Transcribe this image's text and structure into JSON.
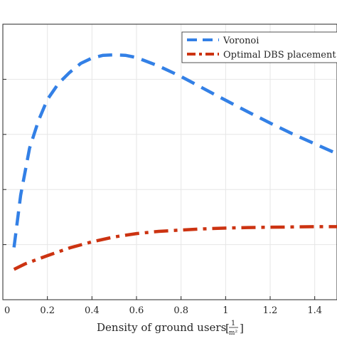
{
  "chart_data": {
    "type": "line",
    "title": "",
    "xlabel": "Density of ground users",
    "xlabel_unit_numerator": "1",
    "xlabel_unit_denominator": "m²",
    "ylabel": "",
    "xlim": [
      0,
      1.5
    ],
    "ylim": [
      0,
      1
    ],
    "x_ticks": [
      "0",
      "0.2",
      "0.4",
      "0.6",
      "0.8",
      "1",
      "1.2",
      "1.4"
    ],
    "grid": true,
    "legend_position": "top-right",
    "series": [
      {
        "name": "Voronoi",
        "color": "#3380e6",
        "dash": "dashed",
        "x": [
          0.05,
          0.08,
          0.12,
          0.16,
          0.2,
          0.25,
          0.3,
          0.35,
          0.4,
          0.45,
          0.5,
          0.55,
          0.6,
          0.7,
          0.8,
          0.9,
          1.0,
          1.1,
          1.2,
          1.3,
          1.4,
          1.5
        ],
        "y": [
          0.19,
          0.38,
          0.55,
          0.65,
          0.727,
          0.785,
          0.825,
          0.858,
          0.877,
          0.887,
          0.889,
          0.887,
          0.879,
          0.848,
          0.81,
          0.767,
          0.724,
          0.682,
          0.641,
          0.602,
          0.566,
          0.53
        ]
      },
      {
        "name": "Optimal DBS placement",
        "color": "#cc3311",
        "dash": "dashdot",
        "x": [
          0.05,
          0.1,
          0.15,
          0.2,
          0.3,
          0.4,
          0.5,
          0.6,
          0.7,
          0.8,
          0.9,
          1.0,
          1.1,
          1.2,
          1.3,
          1.4,
          1.5
        ],
        "y": [
          0.11,
          0.13,
          0.145,
          0.16,
          0.188,
          0.21,
          0.228,
          0.24,
          0.248,
          0.253,
          0.257,
          0.26,
          0.262,
          0.263,
          0.264,
          0.265,
          0.265
        ]
      }
    ]
  }
}
